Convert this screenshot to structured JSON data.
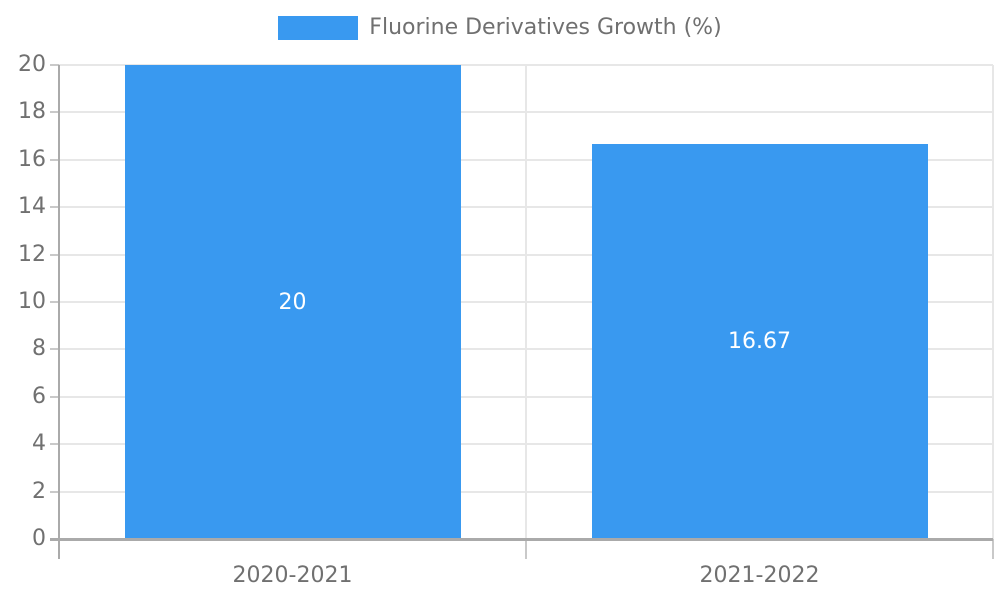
{
  "chart_data": {
    "type": "bar",
    "title": "",
    "xlabel": "",
    "ylabel": "",
    "categories": [
      "2020-2021",
      "2021-2022"
    ],
    "series": [
      {
        "name": "Fluorine Derivatives Growth (%)",
        "values": [
          20,
          16.67
        ]
      }
    ],
    "bar_value_labels": [
      "20",
      "16.67"
    ],
    "ylim": [
      0,
      20
    ],
    "ytick_step": 2,
    "ytick_labels": [
      "0",
      "2",
      "4",
      "6",
      "8",
      "10",
      "12",
      "14",
      "16",
      "18",
      "20"
    ],
    "grid": true,
    "legend_position": "top-center",
    "colors": {
      "bar": "#3999f0",
      "grid": "#e7e7e7",
      "axis": "#aaaaaa",
      "tick": "#c9c9c9",
      "text": "#707070",
      "bar_label": "#ffffff",
      "background": "#ffffff"
    }
  }
}
